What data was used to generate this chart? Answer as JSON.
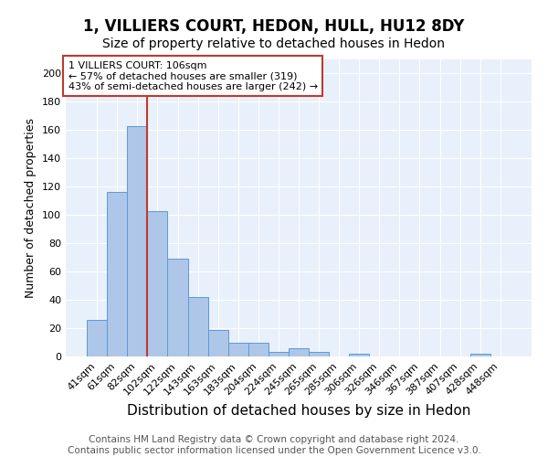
{
  "title": "1, VILLIERS COURT, HEDON, HULL, HU12 8DY",
  "subtitle": "Size of property relative to detached houses in Hedon",
  "xlabel": "Distribution of detached houses by size in Hedon",
  "ylabel": "Number of detached properties",
  "categories": [
    "41sqm",
    "61sqm",
    "82sqm",
    "102sqm",
    "122sqm",
    "143sqm",
    "163sqm",
    "183sqm",
    "204sqm",
    "224sqm",
    "245sqm",
    "265sqm",
    "285sqm",
    "306sqm",
    "326sqm",
    "346sqm",
    "367sqm",
    "387sqm",
    "407sqm",
    "428sqm",
    "448sqm"
  ],
  "values": [
    26,
    116,
    163,
    103,
    69,
    42,
    19,
    10,
    10,
    3,
    6,
    3,
    0,
    2,
    0,
    0,
    0,
    0,
    0,
    2,
    0
  ],
  "bar_color": "#aec6e8",
  "bar_edge_color": "#5b9bd5",
  "vline_color": "#c0392b",
  "vline_x_index": 3,
  "annotation_text": "1 VILLIERS COURT: 106sqm\n← 57% of detached houses are smaller (319)\n43% of semi-detached houses are larger (242) →",
  "annotation_box_facecolor": "#ffffff",
  "annotation_box_edgecolor": "#c0392b",
  "ylim": [
    0,
    210
  ],
  "yticks": [
    0,
    20,
    40,
    60,
    80,
    100,
    120,
    140,
    160,
    180,
    200
  ],
  "footer": "Contains HM Land Registry data © Crown copyright and database right 2024.\nContains public sector information licensed under the Open Government Licence v3.0.",
  "plot_bg_color": "#e8f0fb",
  "title_fontsize": 12,
  "subtitle_fontsize": 10,
  "xlabel_fontsize": 11,
  "ylabel_fontsize": 9,
  "tick_fontsize": 8,
  "footer_fontsize": 7.5,
  "annotation_fontsize": 8
}
